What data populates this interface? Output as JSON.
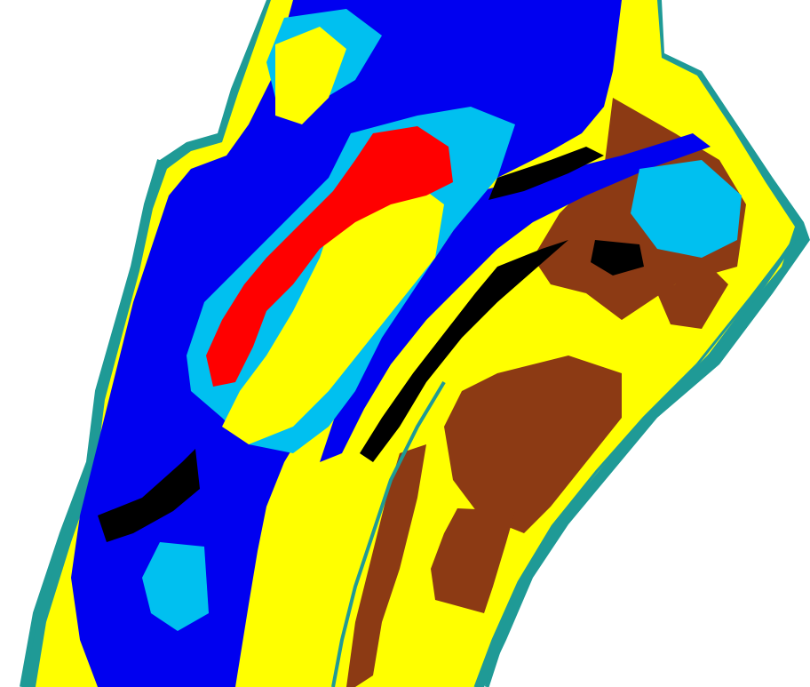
{
  "map": {
    "type": "land-cover-classification",
    "classes": [
      {
        "key": "boundary",
        "color": "#1f9a96"
      },
      {
        "key": "yellow",
        "color": "#ffff00"
      },
      {
        "key": "water",
        "color": "#0000f0"
      },
      {
        "key": "light-blue",
        "color": "#00c0f0"
      },
      {
        "key": "red",
        "color": "#ff0000"
      },
      {
        "key": "brown",
        "color": "#8c3a14"
      },
      {
        "key": "black",
        "color": "#000000"
      },
      {
        "key": "background",
        "color": "#ffffff"
      }
    ]
  }
}
